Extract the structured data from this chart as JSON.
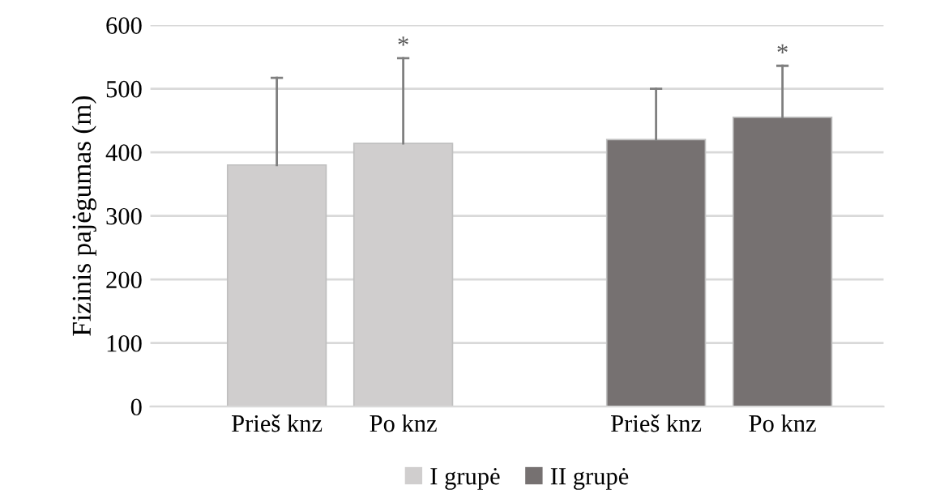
{
  "chart_data": {
    "type": "bar",
    "ylabel": "Fizinis pajėgumas (m)",
    "categories": [
      "Prieš knz",
      "Po knz",
      null,
      "Prieš knz",
      "Po knz"
    ],
    "series": [
      {
        "name": "I grupė",
        "color": "#d0cece",
        "values": [
          380,
          414,
          null,
          null,
          null
        ],
        "errors": [
          [
            380,
            517
          ],
          [
            414,
            548
          ],
          null,
          null,
          null
        ]
      },
      {
        "name": "II grupė",
        "color": "#767171",
        "values": [
          null,
          null,
          null,
          420,
          455
        ],
        "errors": [
          null,
          null,
          null,
          [
            420,
            500
          ],
          [
            455,
            536
          ]
        ]
      }
    ],
    "annotations": [
      {
        "text": "*",
        "y": 548
      },
      {
        "text": "*",
        "y": 536
      }
    ],
    "ylim": [
      0,
      600
    ],
    "yticks": [
      0,
      100,
      200,
      300,
      400,
      500,
      600
    ],
    "grid": "y",
    "legend": "bottom"
  }
}
